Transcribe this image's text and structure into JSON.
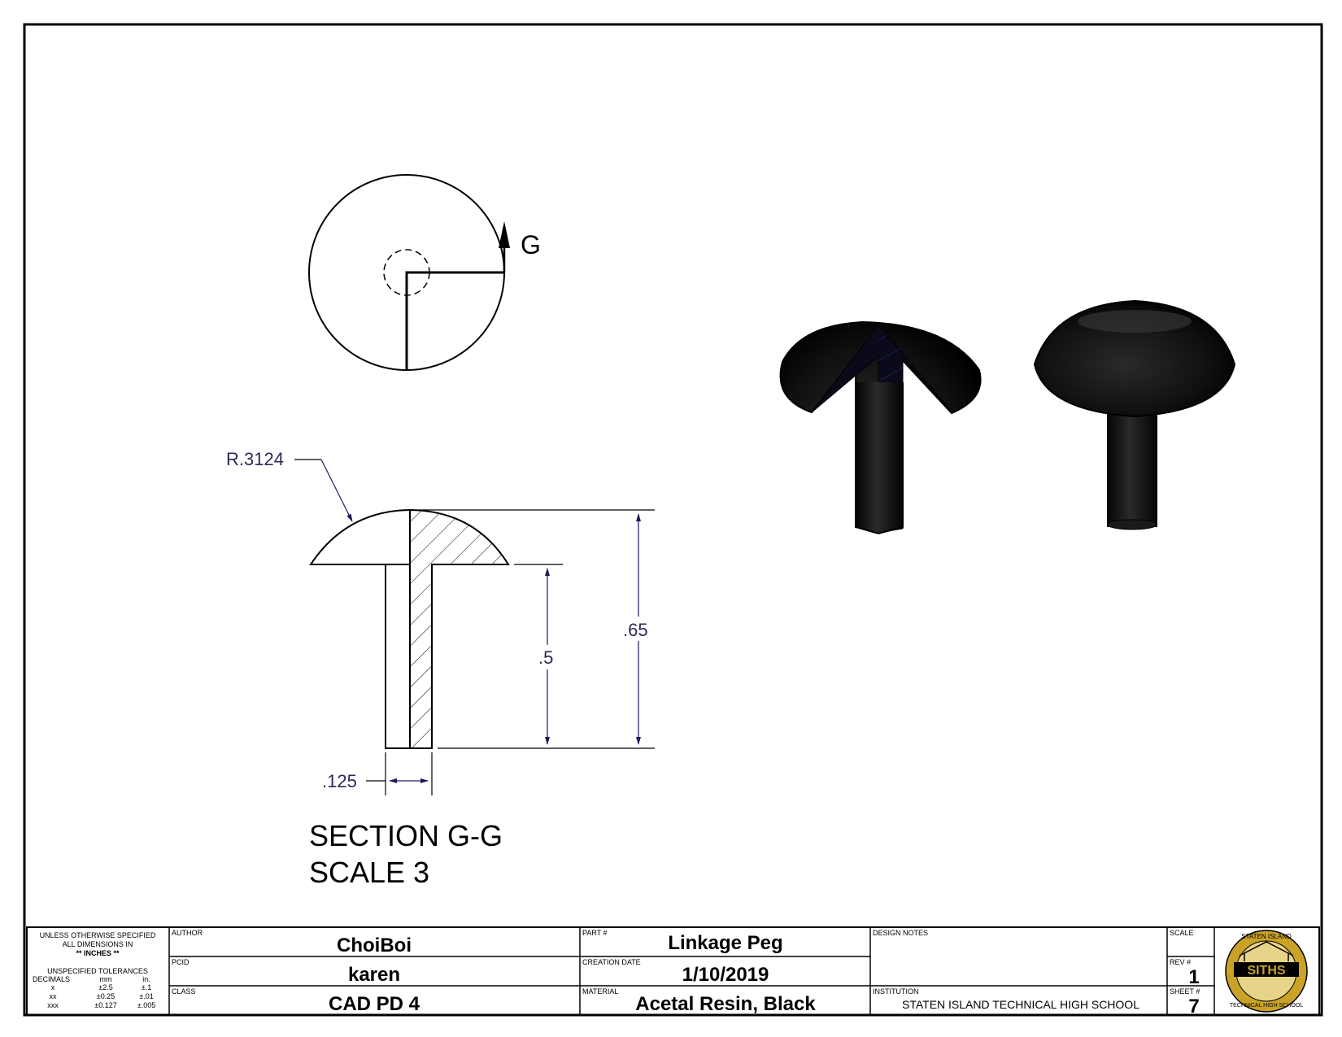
{
  "section_view": {
    "cut_label": "G",
    "title": "SECTION G-G",
    "scale_text": "SCALE 3"
  },
  "dimensions": {
    "radius": "R.3124",
    "height_total": ".65",
    "stem_length": ".5",
    "stem_width": ".125"
  },
  "tolerance_block": {
    "line1": "UNLESS OTHERWISE SPECIFIED",
    "line2": "ALL DIMENSIONS IN",
    "line3": "** INCHES **",
    "line4": "UNSPECIFIED TOLERANCES",
    "col_decimals": "DECIMALS",
    "col_mm": "mm",
    "col_in": "in.",
    "rows": [
      {
        "place": "x",
        "mm": "±2.5",
        "inch": "±.1"
      },
      {
        "place": "xx",
        "mm": "±0.25",
        "inch": "±.01"
      },
      {
        "place": "xxx",
        "mm": "±0.127",
        "inch": "±.005"
      }
    ]
  },
  "title_block": {
    "author_label": "AUTHOR",
    "author": "ChoiBoi",
    "pcid_label": "PCID",
    "pcid": "karen",
    "class_label": "CLASS",
    "class_value": "CAD PD 4",
    "part_label": "PART #",
    "part": "Linkage Peg",
    "creation_label": "CREATION DATE",
    "creation_date": "1/10/2019",
    "material_label": "MATERIAL",
    "material": "Acetal Resin, Black",
    "design_notes_label": "DESIGN NOTES",
    "institution_label": "INSTITUTION",
    "institution": "STATEN ISLAND TECHNICAL HIGH SCHOOL",
    "scale_label": "SCALE",
    "rev_label": "REV #",
    "rev": "1",
    "sheet_label": "SHEET #",
    "sheet": "7"
  },
  "logo": {
    "top_text": "STATEN ISLAND",
    "center_text": "SITHS",
    "bottom_text": "TECHNICAL HIGH SCHOOL"
  }
}
